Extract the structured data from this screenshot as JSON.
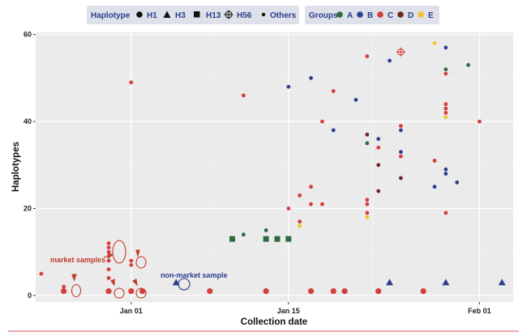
{
  "colors": {
    "A": "#2e6b3f",
    "B": "#2f3f8f",
    "C": "#d53e3e",
    "D": "#6e2522",
    "E": "#f2c12e",
    "annotation_market": "#c0392b",
    "annotation_nonmarket": "#2a3e8c",
    "panel_bg": "#ebebeb",
    "legend_bg": "#dfe1ea",
    "bottom_rule": "#d9534f"
  },
  "legend": {
    "haplotype": {
      "title": "Haplotype",
      "items": [
        {
          "label": "H1",
          "shape": "circle"
        },
        {
          "label": "H3",
          "shape": "triangle"
        },
        {
          "label": "H13",
          "shape": "square"
        },
        {
          "label": "H56",
          "shape": "circle-cross"
        },
        {
          "label": "Others",
          "shape": "dot"
        }
      ]
    },
    "groups": {
      "title": "Groups",
      "items": [
        {
          "label": "A",
          "color_key": "A"
        },
        {
          "label": "B",
          "color_key": "B"
        },
        {
          "label": "C",
          "color_key": "C"
        },
        {
          "label": "D",
          "color_key": "D"
        },
        {
          "label": "E",
          "color_key": "E"
        }
      ]
    }
  },
  "annotations": {
    "market": "market samples",
    "nonmarket": "non-market sample"
  },
  "chart_data": {
    "type": "scatter",
    "title": "",
    "xlabel": "Collection date",
    "ylabel": "Haplotypes",
    "x_unit": "days since Jan 01",
    "xlim": [
      -8.5,
      34
    ],
    "ylim": [
      -1.5,
      60.5
    ],
    "xticks": [
      {
        "value": 0,
        "label": "Jan 01"
      },
      {
        "value": 14,
        "label": "Jan 15"
      },
      {
        "value": 31,
        "label": "Feb 01"
      }
    ],
    "yticks": [
      {
        "value": 0,
        "label": "0"
      },
      {
        "value": 20,
        "label": "20"
      },
      {
        "value": 40,
        "label": "40"
      },
      {
        "value": 60,
        "label": "60"
      }
    ],
    "points": [
      {
        "x": -8,
        "y": 5,
        "group": "C",
        "haplotype": "Others"
      },
      {
        "x": -6,
        "y": 1,
        "group": "C",
        "haplotype": "H1"
      },
      {
        "x": -6,
        "y": 2,
        "group": "C",
        "haplotype": "Others"
      },
      {
        "x": -2,
        "y": 1,
        "group": "C",
        "haplotype": "H1"
      },
      {
        "x": -2,
        "y": 4,
        "group": "C",
        "haplotype": "Others"
      },
      {
        "x": -2,
        "y": 6,
        "group": "C",
        "haplotype": "Others"
      },
      {
        "x": -2,
        "y": 8,
        "group": "C",
        "haplotype": "Others"
      },
      {
        "x": -2,
        "y": 9,
        "group": "C",
        "haplotype": "Others"
      },
      {
        "x": -2,
        "y": 10,
        "group": "C",
        "haplotype": "Others"
      },
      {
        "x": -2,
        "y": 11,
        "group": "C",
        "haplotype": "Others"
      },
      {
        "x": -2,
        "y": 12,
        "group": "C",
        "haplotype": "Others"
      },
      {
        "x": 0,
        "y": 1,
        "group": "C",
        "haplotype": "H1"
      },
      {
        "x": 0,
        "y": 7,
        "group": "C",
        "haplotype": "Others"
      },
      {
        "x": 0,
        "y": 8,
        "group": "C",
        "haplotype": "Others"
      },
      {
        "x": 0,
        "y": 49,
        "group": "C",
        "haplotype": "Others"
      },
      {
        "x": 1,
        "y": 1,
        "group": "C",
        "haplotype": "H1"
      },
      {
        "x": 4,
        "y": 3,
        "group": "B",
        "haplotype": "H3"
      },
      {
        "x": 7,
        "y": 1,
        "group": "C",
        "haplotype": "H1"
      },
      {
        "x": 9,
        "y": 13,
        "group": "A",
        "haplotype": "H13"
      },
      {
        "x": 10,
        "y": 14,
        "group": "A",
        "haplotype": "Others"
      },
      {
        "x": 10,
        "y": 46,
        "group": "C",
        "haplotype": "Others"
      },
      {
        "x": 12,
        "y": 1,
        "group": "C",
        "haplotype": "H1"
      },
      {
        "x": 12,
        "y": 13,
        "group": "A",
        "haplotype": "H13"
      },
      {
        "x": 12,
        "y": 15,
        "group": "A",
        "haplotype": "Others"
      },
      {
        "x": 13,
        "y": 13,
        "group": "A",
        "haplotype": "H13"
      },
      {
        "x": 14,
        "y": 13,
        "group": "A",
        "haplotype": "H13"
      },
      {
        "x": 14,
        "y": 20,
        "group": "C",
        "haplotype": "Others"
      },
      {
        "x": 14,
        "y": 48,
        "group": "B",
        "haplotype": "Others"
      },
      {
        "x": 15,
        "y": 16,
        "group": "E",
        "haplotype": "Others"
      },
      {
        "x": 15,
        "y": 17,
        "group": "C",
        "haplotype": "Others"
      },
      {
        "x": 15,
        "y": 23,
        "group": "C",
        "haplotype": "Others"
      },
      {
        "x": 16,
        "y": 1,
        "group": "C",
        "haplotype": "H1"
      },
      {
        "x": 16,
        "y": 21,
        "group": "C",
        "haplotype": "Others"
      },
      {
        "x": 16,
        "y": 25,
        "group": "C",
        "haplotype": "Others"
      },
      {
        "x": 16,
        "y": 50,
        "group": "B",
        "haplotype": "Others"
      },
      {
        "x": 17,
        "y": 21,
        "group": "C",
        "haplotype": "Others"
      },
      {
        "x": 17,
        "y": 40,
        "group": "C",
        "haplotype": "Others"
      },
      {
        "x": 18,
        "y": 1,
        "group": "C",
        "haplotype": "H1"
      },
      {
        "x": 18,
        "y": 38,
        "group": "B",
        "haplotype": "Others"
      },
      {
        "x": 18,
        "y": 47,
        "group": "C",
        "haplotype": "Others"
      },
      {
        "x": 19,
        "y": 1,
        "group": "C",
        "haplotype": "H1"
      },
      {
        "x": 20,
        "y": 45,
        "group": "B",
        "haplotype": "Others"
      },
      {
        "x": 21,
        "y": 18,
        "group": "E",
        "haplotype": "Others"
      },
      {
        "x": 21,
        "y": 19,
        "group": "C",
        "haplotype": "Others"
      },
      {
        "x": 21,
        "y": 21,
        "group": "C",
        "haplotype": "Others"
      },
      {
        "x": 21,
        "y": 22,
        "group": "C",
        "haplotype": "Others"
      },
      {
        "x": 21,
        "y": 35,
        "group": "A",
        "haplotype": "Others"
      },
      {
        "x": 21,
        "y": 37,
        "group": "D",
        "haplotype": "Others"
      },
      {
        "x": 21,
        "y": 55,
        "group": "C",
        "haplotype": "Others"
      },
      {
        "x": 22,
        "y": 1,
        "group": "C",
        "haplotype": "H1"
      },
      {
        "x": 22,
        "y": 24,
        "group": "D",
        "haplotype": "Others"
      },
      {
        "x": 22,
        "y": 30,
        "group": "D",
        "haplotype": "Others"
      },
      {
        "x": 22,
        "y": 34,
        "group": "C",
        "haplotype": "Others"
      },
      {
        "x": 22,
        "y": 36,
        "group": "B",
        "haplotype": "Others"
      },
      {
        "x": 23,
        "y": 3,
        "group": "B",
        "haplotype": "H3"
      },
      {
        "x": 23,
        "y": 54,
        "group": "B",
        "haplotype": "Others"
      },
      {
        "x": 24,
        "y": 27,
        "group": "D",
        "haplotype": "Others"
      },
      {
        "x": 24,
        "y": 32,
        "group": "C",
        "haplotype": "Others"
      },
      {
        "x": 24,
        "y": 33,
        "group": "B",
        "haplotype": "Others"
      },
      {
        "x": 24,
        "y": 38,
        "group": "B",
        "haplotype": "Others"
      },
      {
        "x": 24,
        "y": 39,
        "group": "C",
        "haplotype": "Others"
      },
      {
        "x": 24,
        "y": 56,
        "group": "C",
        "haplotype": "H56"
      },
      {
        "x": 26,
        "y": 1,
        "group": "C",
        "haplotype": "H1"
      },
      {
        "x": 27,
        "y": 25,
        "group": "B",
        "haplotype": "Others"
      },
      {
        "x": 27,
        "y": 31,
        "group": "C",
        "haplotype": "Others"
      },
      {
        "x": 27,
        "y": 58,
        "group": "E",
        "haplotype": "Others"
      },
      {
        "x": 28,
        "y": 3,
        "group": "B",
        "haplotype": "H3"
      },
      {
        "x": 28,
        "y": 19,
        "group": "C",
        "haplotype": "Others"
      },
      {
        "x": 28,
        "y": 28,
        "group": "B",
        "haplotype": "Others"
      },
      {
        "x": 28,
        "y": 29,
        "group": "B",
        "haplotype": "Others"
      },
      {
        "x": 28,
        "y": 41,
        "group": "E",
        "haplotype": "Others"
      },
      {
        "x": 28,
        "y": 42,
        "group": "C",
        "haplotype": "Others"
      },
      {
        "x": 28,
        "y": 43,
        "group": "C",
        "haplotype": "Others"
      },
      {
        "x": 28,
        "y": 44,
        "group": "C",
        "haplotype": "Others"
      },
      {
        "x": 28,
        "y": 51,
        "group": "C",
        "haplotype": "Others"
      },
      {
        "x": 28,
        "y": 52,
        "group": "A",
        "haplotype": "Others"
      },
      {
        "x": 28,
        "y": 57,
        "group": "B",
        "haplotype": "Others"
      },
      {
        "x": 29,
        "y": 26,
        "group": "B",
        "haplotype": "Others"
      },
      {
        "x": 30,
        "y": 53,
        "group": "A",
        "haplotype": "Others"
      },
      {
        "x": 31,
        "y": 40,
        "group": "C",
        "haplotype": "Others"
      },
      {
        "x": 33,
        "y": 3,
        "group": "B",
        "haplotype": "H3"
      }
    ]
  }
}
